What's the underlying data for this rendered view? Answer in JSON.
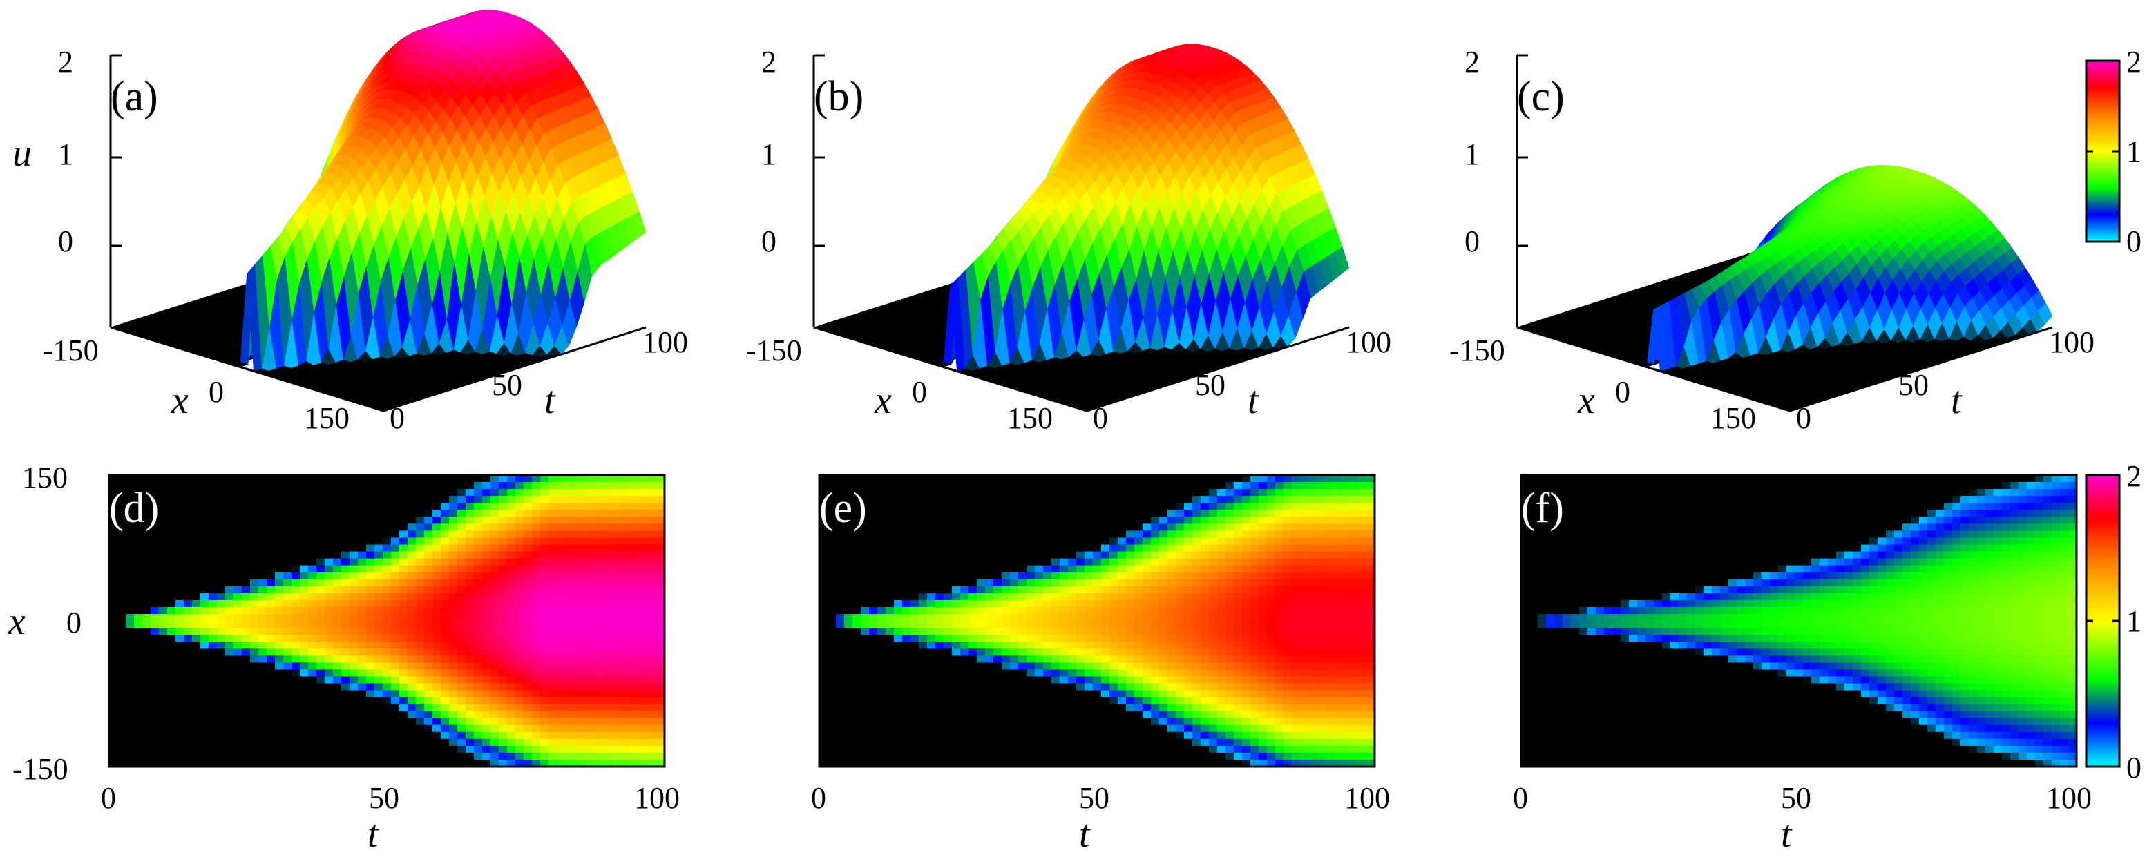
{
  "colorscale": {
    "stops": [
      {
        "v": 0.0,
        "color": "#00ffff"
      },
      {
        "v": 0.3,
        "color": "#0000ff"
      },
      {
        "v": 0.6,
        "color": "#00ff00"
      },
      {
        "v": 1.0,
        "color": "#ffff00"
      },
      {
        "v": 1.4,
        "color": "#ff8000"
      },
      {
        "v": 1.7,
        "color": "#ff0000"
      },
      {
        "v": 2.0,
        "color": "#ff00cc"
      }
    ],
    "background": "#000000"
  },
  "chart_data": [
    {
      "type": "surface",
      "panel": "(a)",
      "xlabel": "x",
      "ylabel": "t",
      "zlabel": "u",
      "x_ticks": [
        "-150",
        "0",
        "150"
      ],
      "t_ticks": [
        "0",
        "50",
        "100"
      ],
      "u_ticks": [
        "0",
        "1",
        "2"
      ],
      "xlim": [
        -150,
        150
      ],
      "tlim": [
        0,
        100
      ],
      "ulim": [
        0,
        2
      ],
      "series": [
        {
          "t": 30,
          "front_x": 62,
          "u_max": 0.6
        },
        {
          "t": 45,
          "front_x": 95,
          "u_max": 1.7
        },
        {
          "t": 60,
          "front_x": 140,
          "u_max": 2.0
        },
        {
          "t": 100,
          "front_x": 150,
          "u_max": 2.0
        }
      ]
    },
    {
      "type": "surface",
      "panel": "(b)",
      "xlabel": "x",
      "ylabel": "t",
      "zlabel": "u",
      "x_ticks": [
        "-150",
        "0",
        "150"
      ],
      "t_ticks": [
        "0",
        "50",
        "100"
      ],
      "u_ticks": [
        "0",
        "1",
        "2"
      ],
      "xlim": [
        -150,
        150
      ],
      "tlim": [
        0,
        100
      ],
      "ulim": [
        0,
        2
      ],
      "series": [
        {
          "t": 30,
          "front_x": 55,
          "u_max": 0.35
        },
        {
          "t": 50,
          "front_x": 95,
          "u_max": 1.4
        },
        {
          "t": 70,
          "front_x": 135,
          "u_max": 1.9
        },
        {
          "t": 100,
          "front_x": 150,
          "u_max": 2.0
        }
      ]
    },
    {
      "type": "surface",
      "panel": "(c)",
      "xlabel": "x",
      "ylabel": "t",
      "zlabel": "u",
      "x_ticks": [
        "-150",
        "0",
        "150"
      ],
      "t_ticks": [
        "0",
        "50",
        "100"
      ],
      "u_ticks": [
        "0",
        "1",
        "2"
      ],
      "xlim": [
        -150,
        150
      ],
      "tlim": [
        0,
        100
      ],
      "ulim": [
        0,
        2
      ],
      "series": [
        {
          "t": 30,
          "front_x": 45,
          "u_max": 0.15
        },
        {
          "t": 60,
          "front_x": 90,
          "u_max": 0.6
        },
        {
          "t": 80,
          "front_x": 120,
          "u_max": 1.1
        },
        {
          "t": 100,
          "front_x": 150,
          "u_max": 1.8
        }
      ]
    },
    {
      "type": "heatmap",
      "panel": "(d)",
      "xlabel": "t",
      "ylabel": "x",
      "x_ticks": [
        "0",
        "50",
        "100"
      ],
      "y_ticks": [
        "-150",
        "0",
        "150"
      ],
      "xlim": [
        0,
        100
      ],
      "ylim": [
        -150,
        150
      ],
      "front": [
        {
          "t": 0,
          "x": 0
        },
        {
          "t": 25,
          "x": 32
        },
        {
          "t": 50,
          "x": 68
        },
        {
          "t": 65,
          "x": 115
        },
        {
          "t": 80,
          "x": 145
        },
        {
          "t": 100,
          "x": 150
        }
      ],
      "ramp_width": 0.65,
      "u_max": 2.0,
      "t_end": 100,
      "t_sat": 78
    },
    {
      "type": "heatmap",
      "panel": "(e)",
      "xlabel": "t",
      "ylabel": "x",
      "x_ticks": [
        "0",
        "50",
        "100"
      ],
      "y_ticks": [
        "-150",
        "0",
        "150"
      ],
      "xlim": [
        0,
        100
      ],
      "ylim": [
        -150,
        150
      ],
      "front": [
        {
          "t": 0,
          "x": 0
        },
        {
          "t": 25,
          "x": 30
        },
        {
          "t": 50,
          "x": 65
        },
        {
          "t": 68,
          "x": 112
        },
        {
          "t": 85,
          "x": 145
        },
        {
          "t": 100,
          "x": 150
        }
      ],
      "ramp_width": 0.75,
      "u_max": 1.75,
      "t_end": 100,
      "t_sat": 85
    },
    {
      "type": "heatmap",
      "panel": "(f)",
      "xlabel": "t",
      "ylabel": "x",
      "x_ticks": [
        "0",
        "50",
        "100"
      ],
      "y_ticks": [
        "-150",
        "0",
        "150"
      ],
      "xlim": [
        0,
        100
      ],
      "ylim": [
        -150,
        150
      ],
      "front": [
        {
          "t": 0,
          "x": 0
        },
        {
          "t": 30,
          "x": 28
        },
        {
          "t": 60,
          "x": 70
        },
        {
          "t": 80,
          "x": 125
        },
        {
          "t": 100,
          "x": 150
        }
      ],
      "ramp_width": 0.9,
      "u_max": 1.25,
      "t_end": 100,
      "t_sat": 200
    }
  ],
  "colorbars": [
    {
      "ticks": [
        "0",
        "1",
        "2"
      ],
      "range": [
        0,
        2
      ]
    },
    {
      "ticks": [
        "0",
        "1",
        "2"
      ],
      "range": [
        0,
        2
      ]
    }
  ]
}
